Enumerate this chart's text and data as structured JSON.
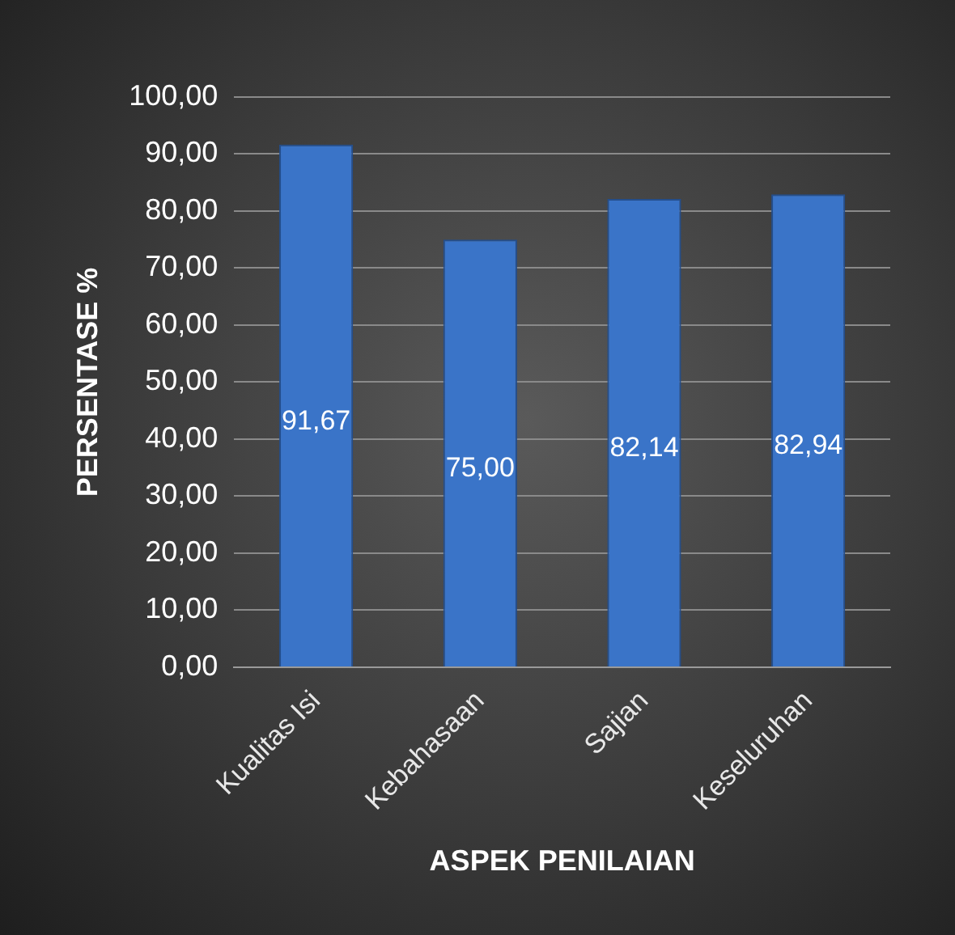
{
  "chart_data": {
    "type": "bar",
    "xlabel": "ASPEK PENILAIAN",
    "ylabel": "PERSENTASE %",
    "categories": [
      "Kualitas Isi",
      "Kebahasaan",
      "Sajian",
      "Keseluruhan"
    ],
    "values": [
      91.67,
      75.0,
      82.14,
      82.94
    ],
    "value_labels": [
      "91,67",
      "75,00",
      "82,14",
      "82,94"
    ],
    "color": "#3a74c8",
    "ylim": [
      0,
      100
    ],
    "yticks": [
      {
        "value": 0,
        "label": "0,00"
      },
      {
        "value": 10,
        "label": "10,00"
      },
      {
        "value": 20,
        "label": "20,00"
      },
      {
        "value": 30,
        "label": "30,00"
      },
      {
        "value": 40,
        "label": "40,00"
      },
      {
        "value": 50,
        "label": "50,00"
      },
      {
        "value": 60,
        "label": "60,00"
      },
      {
        "value": 70,
        "label": "70,00"
      },
      {
        "value": 80,
        "label": "80,00"
      },
      {
        "value": 90,
        "label": "90,00"
      },
      {
        "value": 100,
        "label": "100,00"
      }
    ],
    "grid": "y",
    "legend": false
  }
}
